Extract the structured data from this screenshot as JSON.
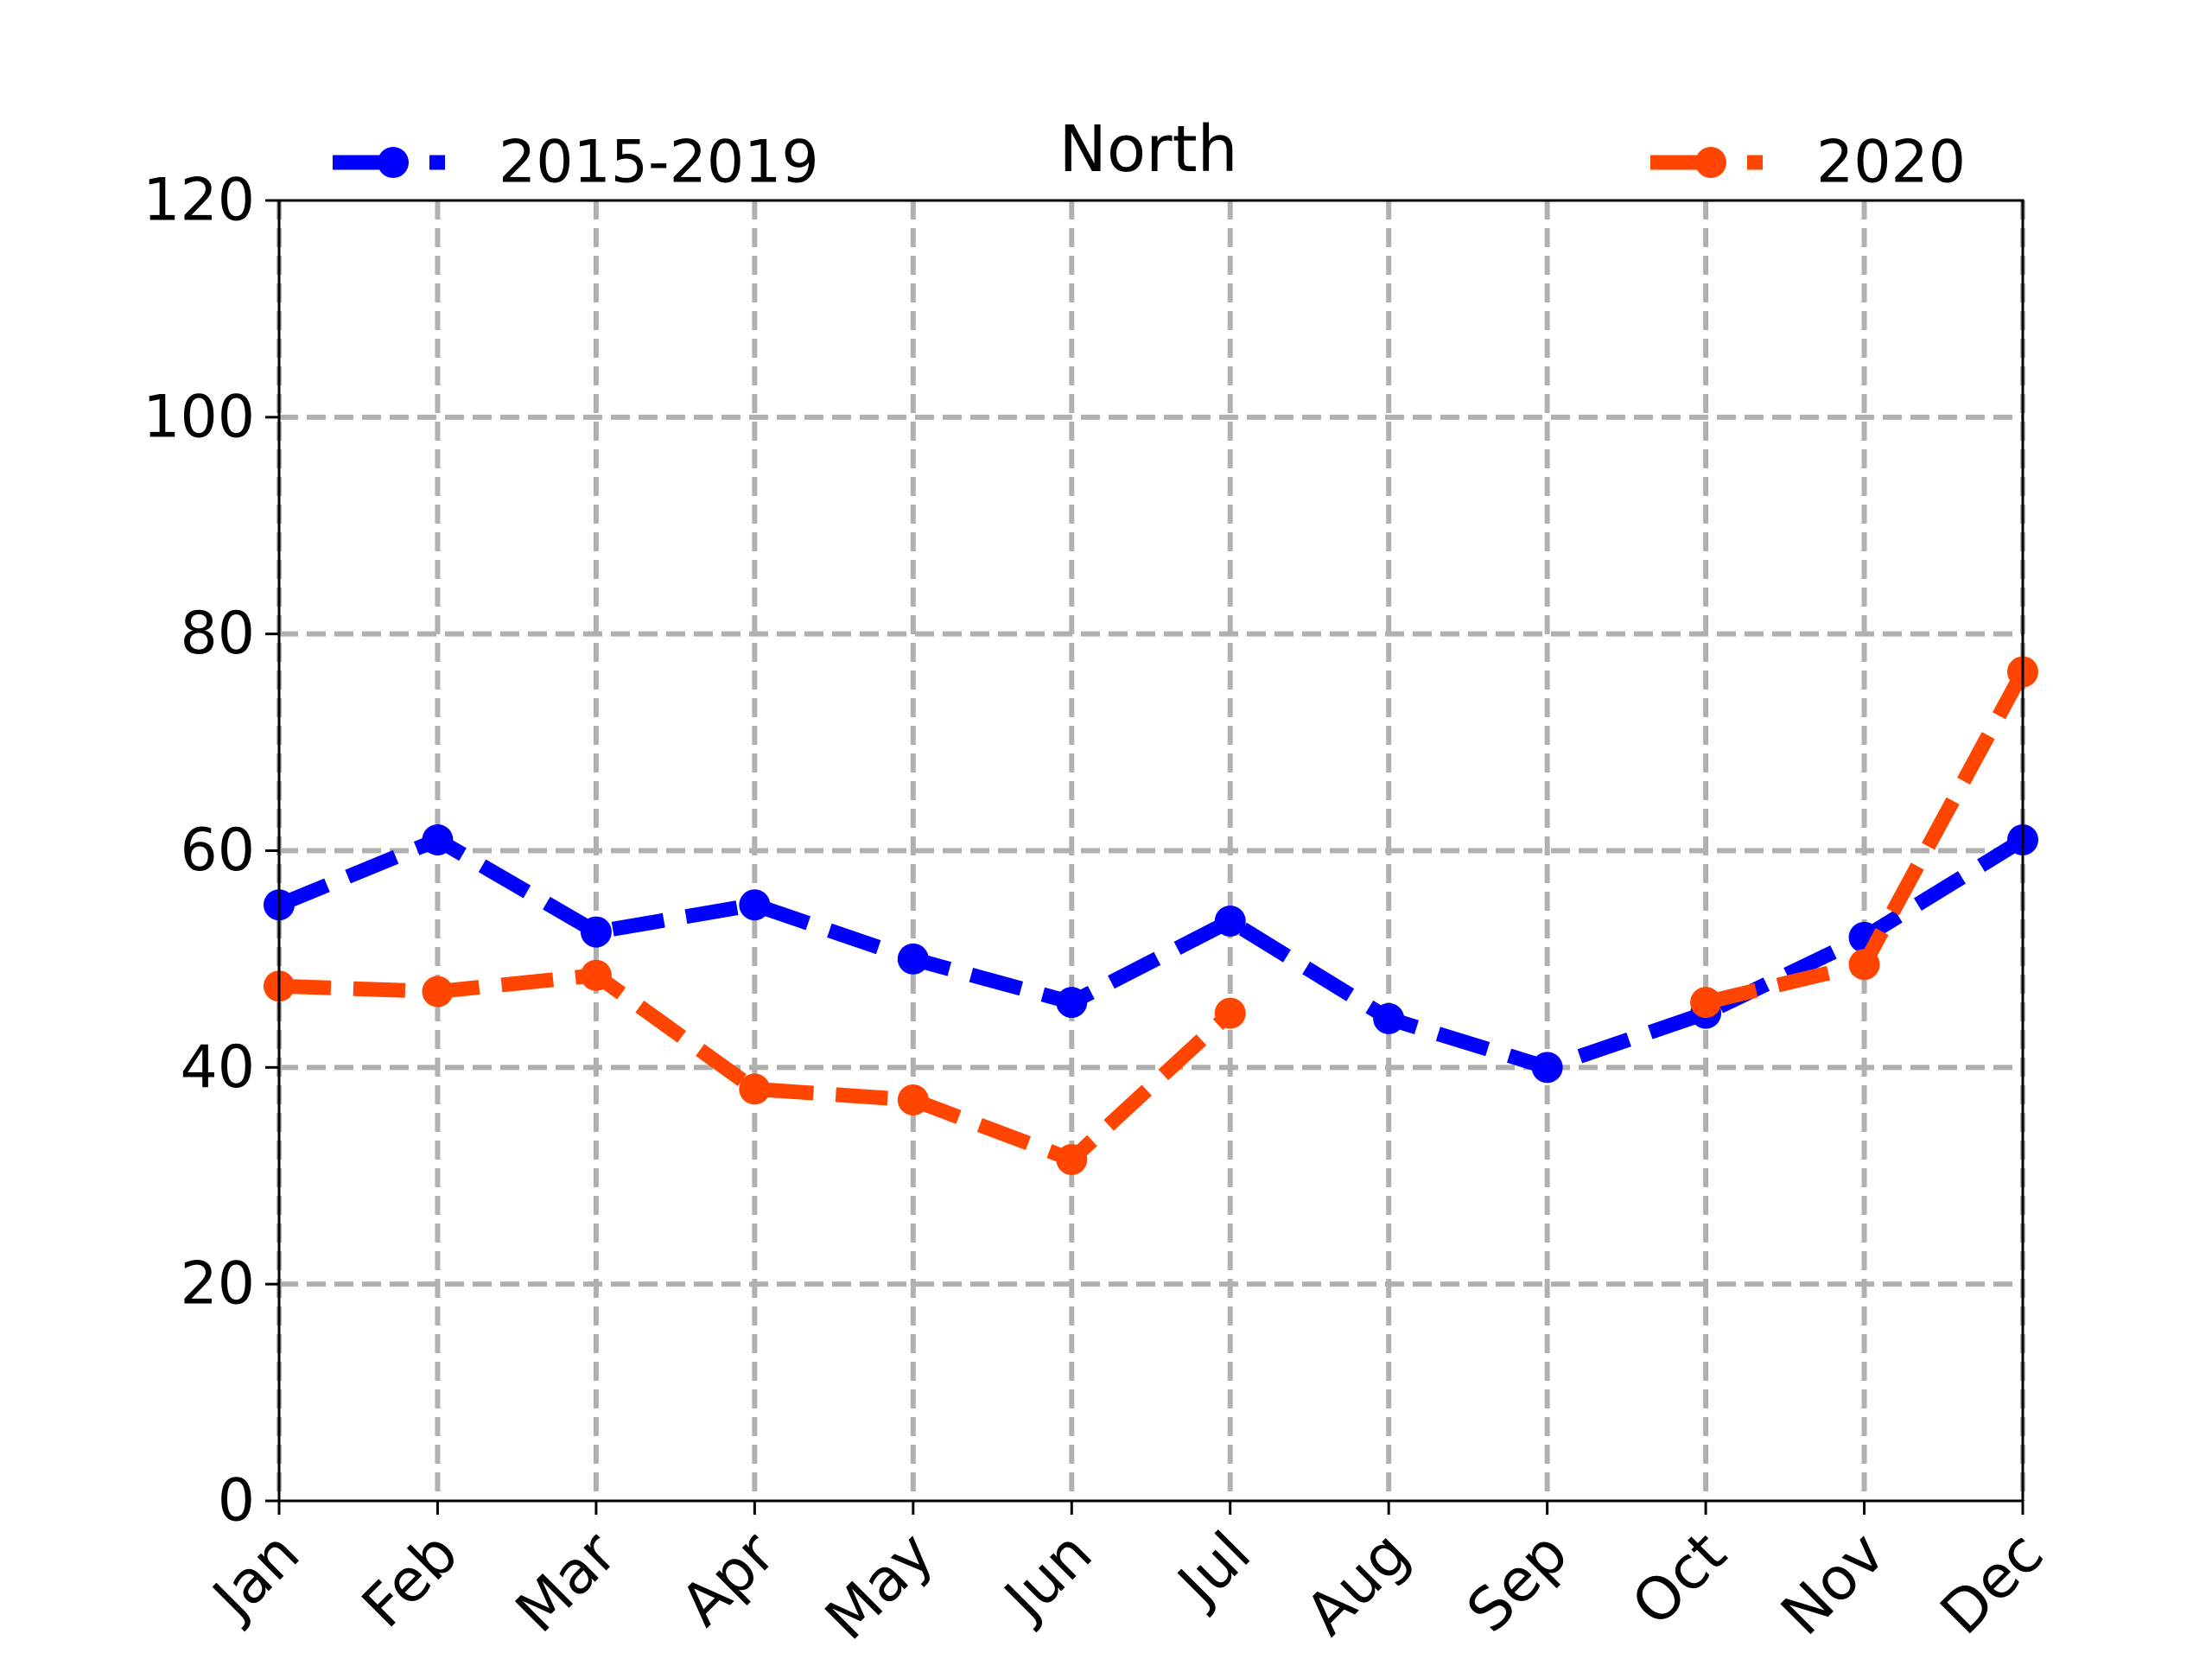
{
  "chart_data": {
    "type": "line",
    "title": "North",
    "xlabel": "",
    "ylabel": "",
    "categories": [
      "Jan",
      "Feb",
      "Mar",
      "Apr",
      "May",
      "Jun",
      "Jul",
      "Aug",
      "Sep",
      "Oct",
      "Nov",
      "Dec"
    ],
    "ylim": [
      0,
      120
    ],
    "yticks": [
      0,
      20,
      40,
      60,
      80,
      100,
      120
    ],
    "grid": true,
    "series": [
      {
        "name": "2015-2019",
        "color": "#0000ff",
        "values": [
          55,
          61,
          52.5,
          55,
          50,
          46,
          53.5,
          44.5,
          40,
          45,
          52,
          61
        ],
        "legend_position": "top-left"
      },
      {
        "name": "2020",
        "color": "#ff4500",
        "values": [
          47.5,
          47,
          48.5,
          38,
          37,
          31.5,
          45,
          null,
          null,
          46,
          49.5,
          76.5
        ],
        "legend_position": "top-right"
      }
    ]
  }
}
